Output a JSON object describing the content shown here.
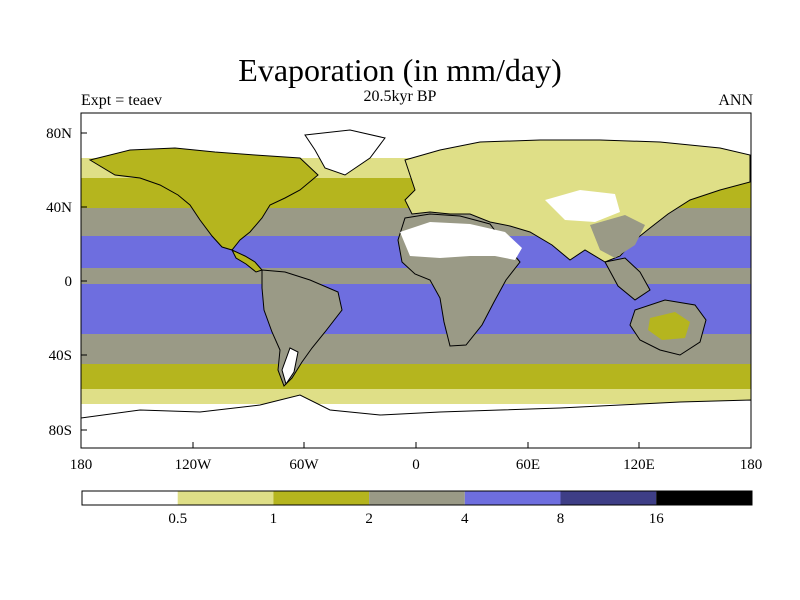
{
  "title": "Evaporation (in mm/day)",
  "subtitle": "20.5kyr BP",
  "left_label": "Expt = teaev",
  "right_label": "ANN",
  "map": {
    "lat_ticks": [
      "80N",
      "40N",
      "0",
      "40S",
      "80S"
    ],
    "lon_ticks": [
      "180",
      "120W",
      "60W",
      "0",
      "60E",
      "120E",
      "180"
    ]
  },
  "colorbar": {
    "colors": [
      "#ffffff",
      "#dfdf87",
      "#b5b51e",
      "#9a9a86",
      "#6e6edf",
      "#3e3e86",
      "#000000"
    ],
    "labels": [
      "0.5",
      "1",
      "2",
      "4",
      "8",
      "16"
    ]
  },
  "zone_colors": {
    "white": "#ffffff",
    "pale": "#dfdf87",
    "olive": "#b5b51e",
    "gray": "#9a9a86",
    "blue": "#6e6edf"
  }
}
